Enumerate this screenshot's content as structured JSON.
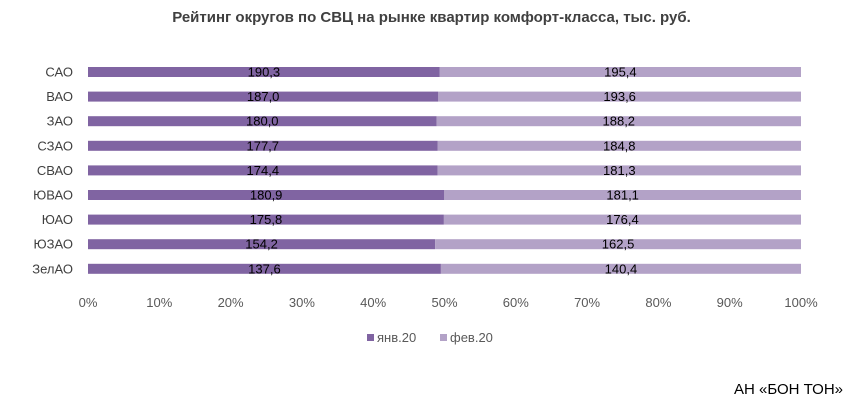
{
  "chart_data": {
    "type": "bar",
    "orientation": "horizontal",
    "stacking": "percent",
    "title": "Рейтинг округов по СВЦ на рынке квартир комфорт-класса, тыс. руб.",
    "categories": [
      "САО",
      "ВАО",
      "ЗАО",
      "СЗАО",
      "СВАО",
      "ЮВАО",
      "ЮАО",
      "ЮЗАО",
      "ЗелАО"
    ],
    "series": [
      {
        "name": "янв.20",
        "color": "#8064a2",
        "values": [
          190.3,
          187.0,
          180.0,
          177.7,
          174.4,
          180.9,
          175.8,
          154.2,
          137.6
        ],
        "labels": [
          "190,3",
          "187,0",
          "180,0",
          "177,7",
          "174,4",
          "180,9",
          "175,8",
          "154,2",
          "137,6"
        ]
      },
      {
        "name": "фев.20",
        "color": "#b3a2c7",
        "values": [
          195.4,
          193.6,
          188.2,
          184.8,
          181.3,
          181.1,
          176.4,
          162.5,
          140.4
        ],
        "labels": [
          "195,4",
          "193,6",
          "188,2",
          "184,8",
          "181,3",
          "181,1",
          "176,4",
          "162,5",
          "140,4"
        ]
      }
    ],
    "xticks": [
      "0%",
      "10%",
      "20%",
      "30%",
      "40%",
      "50%",
      "60%",
      "70%",
      "80%",
      "90%",
      "100%"
    ],
    "xlim": [
      0,
      100
    ],
    "grid": false,
    "legend_position": "bottom"
  },
  "footer": {
    "source": "АН «БОН ТОН»"
  }
}
